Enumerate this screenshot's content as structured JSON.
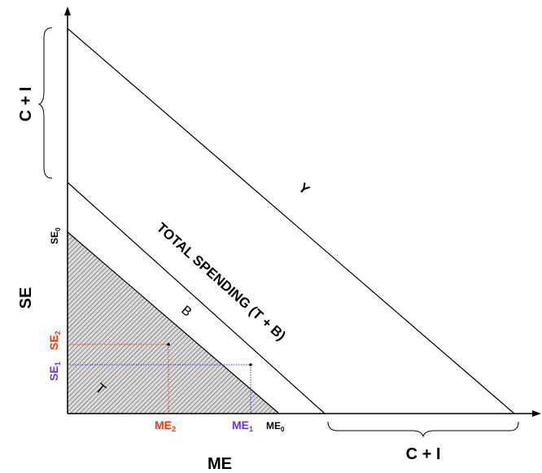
{
  "labels": {
    "y_axis_top": "C + I",
    "y_axis_mid": "SE",
    "x_axis": "ME",
    "x_axis_right": "C + I",
    "line_y": "Y",
    "line_total": "TOTAL SPENDING (T + B)",
    "line_b": "B",
    "region_t": "T"
  },
  "ticks": {
    "se0": {
      "main": "SE",
      "sub": "0"
    },
    "se1": {
      "main": "SE",
      "sub": "1"
    },
    "se2": {
      "main": "SE",
      "sub": "2"
    },
    "me0": {
      "main": "ME",
      "sub": "0"
    },
    "me1": {
      "main": "ME",
      "sub": "1"
    },
    "me2": {
      "main": "ME",
      "sub": "2"
    }
  },
  "colors": {
    "axis": "#000000",
    "se1": "#6633ff",
    "se2": "#ff3300",
    "me1": "#6633ff",
    "me2": "#ff3300",
    "me0": "#000000",
    "hatch_bg": "#d9d9d9",
    "hatch_line": "#444444"
  }
}
